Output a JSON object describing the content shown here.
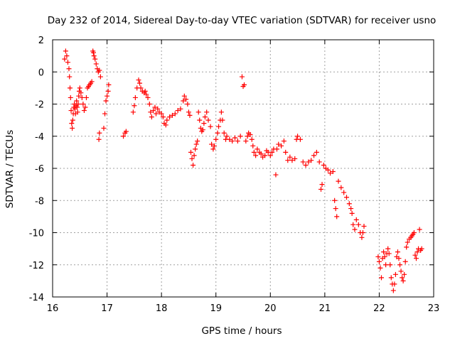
{
  "chart_data": {
    "type": "scatter",
    "title": "Day 232 of 2014, Sidereal Day-to-day VTEC variation (SDTVAR) for receiver usno",
    "xlabel": "GPS time / hours",
    "ylabel": "SDTVAR / TECUs",
    "xlim": [
      16,
      23
    ],
    "ylim": [
      -14,
      2
    ],
    "xticks": [
      16,
      17,
      18,
      19,
      20,
      21,
      22,
      23
    ],
    "yticks": [
      2,
      0,
      -2,
      -4,
      -6,
      -8,
      -10,
      -12,
      -14
    ],
    "xtick_labels": [
      "16",
      "17",
      "18",
      "19",
      "20",
      "21",
      "22",
      "23"
    ],
    "ytick_labels": [
      "2",
      "0",
      "-2",
      "-4",
      "-6",
      "-8",
      "-10",
      "-12",
      "-14"
    ],
    "grid": true,
    "marker": "+",
    "series": [
      {
        "name": "SDTVAR",
        "color": "#ff0000",
        "points": [
          [
            16.22,
            0.8
          ],
          [
            16.24,
            1.3
          ],
          [
            16.26,
            1.0
          ],
          [
            16.28,
            0.6
          ],
          [
            16.3,
            0.2
          ],
          [
            16.31,
            -0.3
          ],
          [
            16.32,
            -1.0
          ],
          [
            16.33,
            -1.6
          ],
          [
            16.34,
            -2.4
          ],
          [
            16.35,
            -3.2
          ],
          [
            16.36,
            -3.5
          ],
          [
            16.37,
            -3.0
          ],
          [
            16.38,
            -2.6
          ],
          [
            16.39,
            -2.2
          ],
          [
            16.4,
            -2.0
          ],
          [
            16.41,
            -2.3
          ],
          [
            16.42,
            -2.6
          ],
          [
            16.43,
            -2.1
          ],
          [
            16.44,
            -1.8
          ],
          [
            16.45,
            -2.2
          ],
          [
            16.46,
            -2.5
          ],
          [
            16.47,
            -2.0
          ],
          [
            16.48,
            -1.5
          ],
          [
            16.49,
            -1.2
          ],
          [
            16.5,
            -1.0
          ],
          [
            16.52,
            -1.3
          ],
          [
            16.54,
            -1.6
          ],
          [
            16.56,
            -2.0
          ],
          [
            16.58,
            -2.4
          ],
          [
            16.6,
            -2.2
          ],
          [
            16.62,
            -1.6
          ],
          [
            16.64,
            -1.0
          ],
          [
            16.66,
            -0.9
          ],
          [
            16.68,
            -0.8
          ],
          [
            16.7,
            -0.7
          ],
          [
            16.72,
            -0.6
          ],
          [
            16.74,
            1.3
          ],
          [
            16.75,
            1.2
          ],
          [
            16.76,
            1.0
          ],
          [
            16.78,
            0.8
          ],
          [
            16.8,
            0.5
          ],
          [
            16.82,
            0.2
          ],
          [
            16.84,
            0.0
          ],
          [
            16.86,
            0.1
          ],
          [
            16.88,
            -0.3
          ],
          [
            16.85,
            -4.2
          ],
          [
            16.86,
            -3.8
          ],
          [
            16.94,
            -3.5
          ],
          [
            16.96,
            -2.6
          ],
          [
            16.98,
            -1.8
          ],
          [
            17.0,
            -1.5
          ],
          [
            17.03,
            -0.8
          ],
          [
            17.02,
            -1.2
          ],
          [
            17.3,
            -4.0
          ],
          [
            17.33,
            -3.8
          ],
          [
            17.35,
            -3.7
          ],
          [
            17.48,
            -2.5
          ],
          [
            17.5,
            -2.1
          ],
          [
            17.52,
            -1.6
          ],
          [
            17.55,
            -1.0
          ],
          [
            17.58,
            -0.5
          ],
          [
            17.6,
            -0.7
          ],
          [
            17.62,
            -1.0
          ],
          [
            17.65,
            -1.2
          ],
          [
            17.68,
            -1.3
          ],
          [
            17.7,
            -1.2
          ],
          [
            17.72,
            -1.4
          ],
          [
            17.75,
            -1.6
          ],
          [
            17.78,
            -2.0
          ],
          [
            17.8,
            -2.5
          ],
          [
            17.82,
            -2.8
          ],
          [
            17.85,
            -2.4
          ],
          [
            17.88,
            -2.2
          ],
          [
            17.9,
            -2.6
          ],
          [
            17.93,
            -2.3
          ],
          [
            17.96,
            -2.5
          ],
          [
            18.0,
            -2.6
          ],
          [
            18.03,
            -2.8
          ],
          [
            18.05,
            -3.2
          ],
          [
            18.08,
            -3.3
          ],
          [
            18.1,
            -3.0
          ],
          [
            18.15,
            -2.8
          ],
          [
            18.2,
            -2.7
          ],
          [
            18.25,
            -2.6
          ],
          [
            18.3,
            -2.4
          ],
          [
            18.35,
            -2.3
          ],
          [
            18.4,
            -1.8
          ],
          [
            18.42,
            -1.5
          ],
          [
            18.45,
            -1.7
          ],
          [
            18.48,
            -2.0
          ],
          [
            18.5,
            -2.5
          ],
          [
            18.52,
            -2.7
          ],
          [
            18.54,
            -5.0
          ],
          [
            18.56,
            -5.4
          ],
          [
            18.58,
            -5.8
          ],
          [
            18.6,
            -5.2
          ],
          [
            18.62,
            -4.8
          ],
          [
            18.64,
            -4.5
          ],
          [
            18.66,
            -4.3
          ],
          [
            18.68,
            -2.5
          ],
          [
            18.7,
            -3.0
          ],
          [
            18.72,
            -3.5
          ],
          [
            18.74,
            -3.7
          ],
          [
            18.76,
            -3.6
          ],
          [
            18.78,
            -3.2
          ],
          [
            18.8,
            -2.8
          ],
          [
            18.83,
            -2.5
          ],
          [
            18.86,
            -3.0
          ],
          [
            18.9,
            -3.4
          ],
          [
            18.92,
            -4.5
          ],
          [
            18.95,
            -4.8
          ],
          [
            18.97,
            -4.6
          ],
          [
            19.0,
            -4.2
          ],
          [
            19.03,
            -3.8
          ],
          [
            19.05,
            -3.4
          ],
          [
            19.08,
            -3.0
          ],
          [
            19.1,
            -2.5
          ],
          [
            19.12,
            -3.0
          ],
          [
            19.15,
            -3.8
          ],
          [
            19.18,
            -4.2
          ],
          [
            19.2,
            -4.0
          ],
          [
            19.25,
            -4.2
          ],
          [
            19.3,
            -4.3
          ],
          [
            19.35,
            -4.1
          ],
          [
            19.4,
            -4.3
          ],
          [
            19.45,
            -4.0
          ],
          [
            19.48,
            -0.3
          ],
          [
            19.5,
            -0.9
          ],
          [
            19.52,
            -0.8
          ],
          [
            19.55,
            -4.3
          ],
          [
            19.58,
            -4.0
          ],
          [
            19.6,
            -3.8
          ],
          [
            19.63,
            -3.9
          ],
          [
            19.66,
            -4.2
          ],
          [
            19.68,
            -4.6
          ],
          [
            19.7,
            -5.0
          ],
          [
            19.73,
            -5.2
          ],
          [
            19.76,
            -4.8
          ],
          [
            19.8,
            -5.0
          ],
          [
            19.83,
            -5.1
          ],
          [
            19.86,
            -5.3
          ],
          [
            19.9,
            -5.2
          ],
          [
            19.93,
            -4.9
          ],
          [
            19.96,
            -5.0
          ],
          [
            20.0,
            -5.2
          ],
          [
            20.03,
            -5.0
          ],
          [
            20.06,
            -4.8
          ],
          [
            20.1,
            -6.4
          ],
          [
            20.12,
            -4.8
          ],
          [
            20.15,
            -4.5
          ],
          [
            20.2,
            -4.6
          ],
          [
            20.25,
            -4.3
          ],
          [
            20.28,
            -5.0
          ],
          [
            20.32,
            -5.5
          ],
          [
            20.36,
            -5.3
          ],
          [
            20.4,
            -5.5
          ],
          [
            20.45,
            -5.4
          ],
          [
            20.48,
            -4.2
          ],
          [
            20.5,
            -4.0
          ],
          [
            20.55,
            -4.2
          ],
          [
            20.6,
            -5.6
          ],
          [
            20.65,
            -5.8
          ],
          [
            20.7,
            -5.6
          ],
          [
            20.75,
            -5.5
          ],
          [
            20.8,
            -5.2
          ],
          [
            20.85,
            -5.0
          ],
          [
            20.9,
            -5.6
          ],
          [
            20.93,
            -7.3
          ],
          [
            20.95,
            -7.0
          ],
          [
            20.98,
            -5.8
          ],
          [
            21.02,
            -6.0
          ],
          [
            21.06,
            -6.1
          ],
          [
            21.1,
            -6.3
          ],
          [
            21.15,
            -6.2
          ],
          [
            21.18,
            -8.0
          ],
          [
            21.2,
            -8.5
          ],
          [
            21.22,
            -9.0
          ],
          [
            21.25,
            -6.8
          ],
          [
            21.3,
            -7.2
          ],
          [
            21.35,
            -7.5
          ],
          [
            21.4,
            -7.8
          ],
          [
            21.45,
            -8.2
          ],
          [
            21.48,
            -8.5
          ],
          [
            21.5,
            -8.8
          ],
          [
            21.52,
            -9.5
          ],
          [
            21.55,
            -9.8
          ],
          [
            21.58,
            -9.2
          ],
          [
            21.62,
            -9.5
          ],
          [
            21.65,
            -10.0
          ],
          [
            21.68,
            -10.3
          ],
          [
            21.7,
            -10.0
          ],
          [
            21.72,
            -9.6
          ],
          [
            21.98,
            -11.5
          ],
          [
            22.0,
            -11.8
          ],
          [
            22.02,
            -12.2
          ],
          [
            22.04,
            -12.8
          ],
          [
            22.06,
            -11.6
          ],
          [
            22.08,
            -11.2
          ],
          [
            22.1,
            -11.5
          ],
          [
            22.12,
            -12.0
          ],
          [
            22.14,
            -11.3
          ],
          [
            22.16,
            -11.0
          ],
          [
            22.18,
            -11.3
          ],
          [
            22.2,
            -12.0
          ],
          [
            22.22,
            -12.8
          ],
          [
            22.24,
            -13.2
          ],
          [
            22.26,
            -13.6
          ],
          [
            22.28,
            -13.2
          ],
          [
            22.3,
            -12.6
          ],
          [
            22.32,
            -11.5
          ],
          [
            22.34,
            -11.2
          ],
          [
            22.36,
            -11.6
          ],
          [
            22.38,
            -12.0
          ],
          [
            22.4,
            -12.4
          ],
          [
            22.42,
            -12.8
          ],
          [
            22.44,
            -13.0
          ],
          [
            22.46,
            -12.6
          ],
          [
            22.48,
            -11.8
          ],
          [
            22.5,
            -10.9
          ],
          [
            22.52,
            -10.6
          ],
          [
            22.55,
            -10.4
          ],
          [
            22.58,
            -10.3
          ],
          [
            22.6,
            -10.2
          ],
          [
            22.62,
            -10.1
          ],
          [
            22.64,
            -10.0
          ],
          [
            22.66,
            -11.4
          ],
          [
            22.68,
            -11.6
          ],
          [
            22.7,
            -11.2
          ],
          [
            22.72,
            -11.0
          ],
          [
            22.74,
            -9.8
          ],
          [
            22.76,
            -11.1
          ],
          [
            22.78,
            -11.0
          ]
        ]
      }
    ]
  }
}
